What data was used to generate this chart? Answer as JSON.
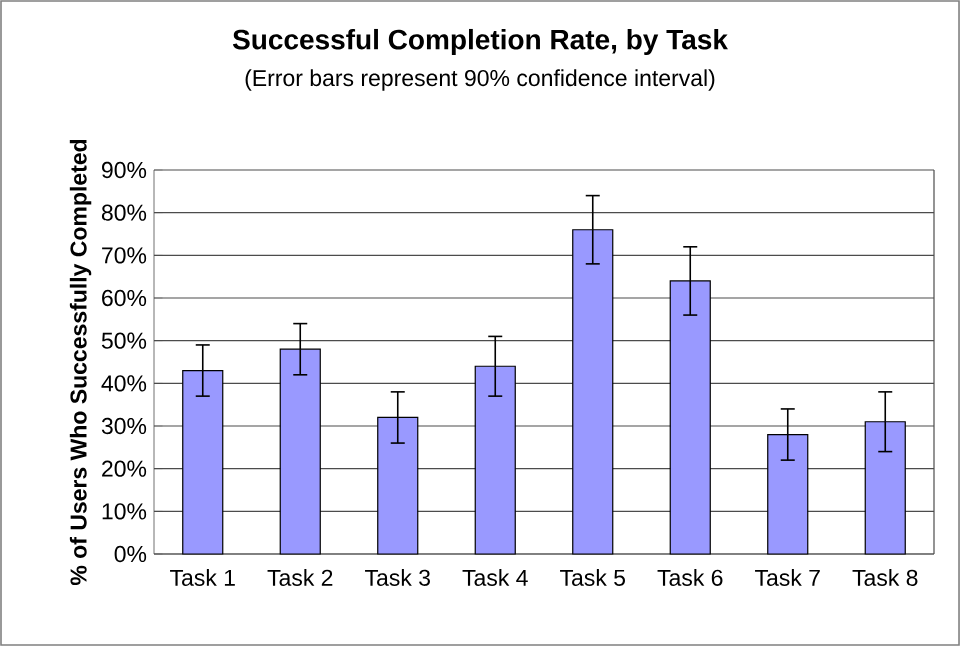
{
  "chart_data": {
    "type": "bar",
    "title": "Successful Completion Rate, by Task",
    "subtitle": "(Error bars represent 90% confidence interval)",
    "ylabel": "% of Users Who Successfully Completed",
    "categories": [
      "Task 1",
      "Task 2",
      "Task 3",
      "Task 4",
      "Task 5",
      "Task 6",
      "Task 7",
      "Task 8"
    ],
    "values": [
      43,
      48,
      32,
      44,
      76,
      64,
      28,
      31
    ],
    "errors": [
      6,
      6,
      6,
      7,
      8,
      8,
      6,
      7
    ],
    "color": "#9999ff",
    "ylim": [
      0,
      90
    ],
    "yticks": [
      {
        "value": 0,
        "label": "0%"
      },
      {
        "value": 10,
        "label": "10%"
      },
      {
        "value": 20,
        "label": "20%"
      },
      {
        "value": 30,
        "label": "30%"
      },
      {
        "value": 40,
        "label": "40%"
      },
      {
        "value": 50,
        "label": "50%"
      },
      {
        "value": 60,
        "label": "60%"
      },
      {
        "value": 70,
        "label": "70%"
      },
      {
        "value": 80,
        "label": "80%"
      },
      {
        "value": 90,
        "label": "90%"
      }
    ],
    "grid": "y"
  }
}
